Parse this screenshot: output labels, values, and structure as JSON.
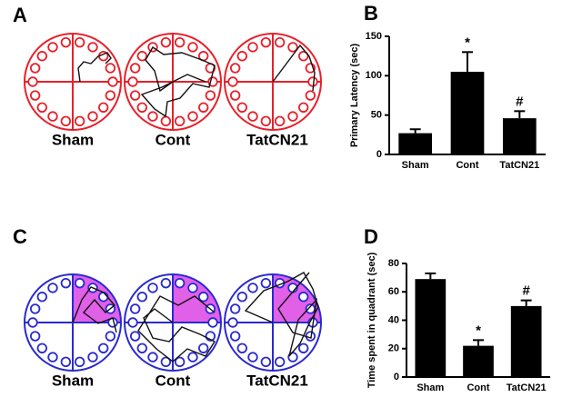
{
  "panels": [
    {
      "letter": "A",
      "labels": [
        "Sham",
        "Cont",
        "TatCN21"
      ]
    },
    {
      "letter": "C",
      "labels": [
        "Sham",
        "Cont",
        "TatCN21"
      ]
    }
  ],
  "chart_data": [
    {
      "type": "bar",
      "letter": "B",
      "y_label": "Primary Latency (sec)",
      "categories": [
        "Sham",
        "Cont",
        "TatCN21"
      ],
      "values": [
        27,
        105,
        46
      ],
      "errors": [
        5,
        25,
        9
      ],
      "annotations": [
        null,
        "*",
        "#"
      ],
      "color": "#000000",
      "ylim": [
        0,
        150
      ],
      "yticks": [
        0,
        50,
        100,
        150
      ]
    },
    {
      "type": "bar",
      "letter": "D",
      "y_label": "Time spent in quadrant (sec)",
      "categories": [
        "Sham",
        "Cont",
        "TatCN21"
      ],
      "values": [
        69,
        22,
        50
      ],
      "errors": [
        4,
        4,
        4
      ],
      "annotations": [
        null,
        "*",
        "#"
      ],
      "color": "#000000",
      "ylim": [
        0,
        80
      ],
      "yticks": [
        0,
        20,
        40,
        60,
        80
      ]
    }
  ]
}
